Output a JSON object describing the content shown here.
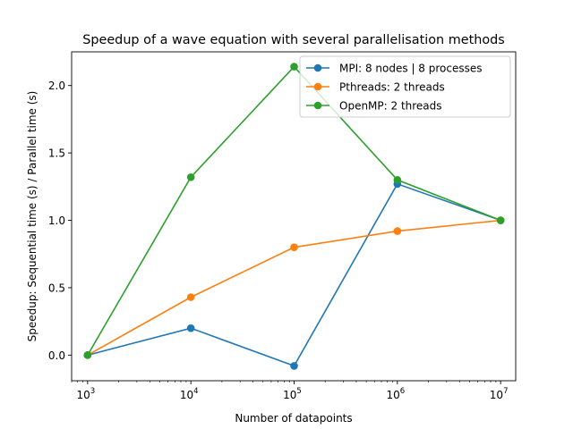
{
  "chart_data": {
    "type": "line",
    "title": "Speedup of a wave equation with several parallelisation methods",
    "xlabel": "Number of datapoints",
    "ylabel": "Speedup: Sequential time (s) / Parallel time (s)",
    "xscale": "log",
    "x": [
      1000,
      10000,
      100000,
      1000000,
      10000000
    ],
    "x_tick_labels": [
      {
        "base": "10",
        "exp": "3"
      },
      {
        "base": "10",
        "exp": "4"
      },
      {
        "base": "10",
        "exp": "5"
      },
      {
        "base": "10",
        "exp": "6"
      },
      {
        "base": "10",
        "exp": "7"
      }
    ],
    "y_ticks": [
      "0.0",
      "0.5",
      "1.0",
      "1.5",
      "2.0"
    ],
    "xlim": [
      700,
      14000000
    ],
    "ylim": [
      -0.19,
      2.25
    ],
    "grid": false,
    "legend_position": "top-right",
    "series": [
      {
        "name": "MPI: 8 nodes | 8 processes",
        "color": "#1f77b4",
        "values": [
          0.0,
          0.2,
          -0.08,
          1.27,
          1.0
        ]
      },
      {
        "name": "Pthreads: 2 threads",
        "color": "#ff7f0e",
        "values": [
          0.0,
          0.43,
          0.8,
          0.92,
          1.0
        ]
      },
      {
        "name": "OpenMP: 2 threads",
        "color": "#2ca02c",
        "values": [
          0.0,
          1.32,
          2.14,
          1.3,
          1.0
        ]
      }
    ]
  }
}
